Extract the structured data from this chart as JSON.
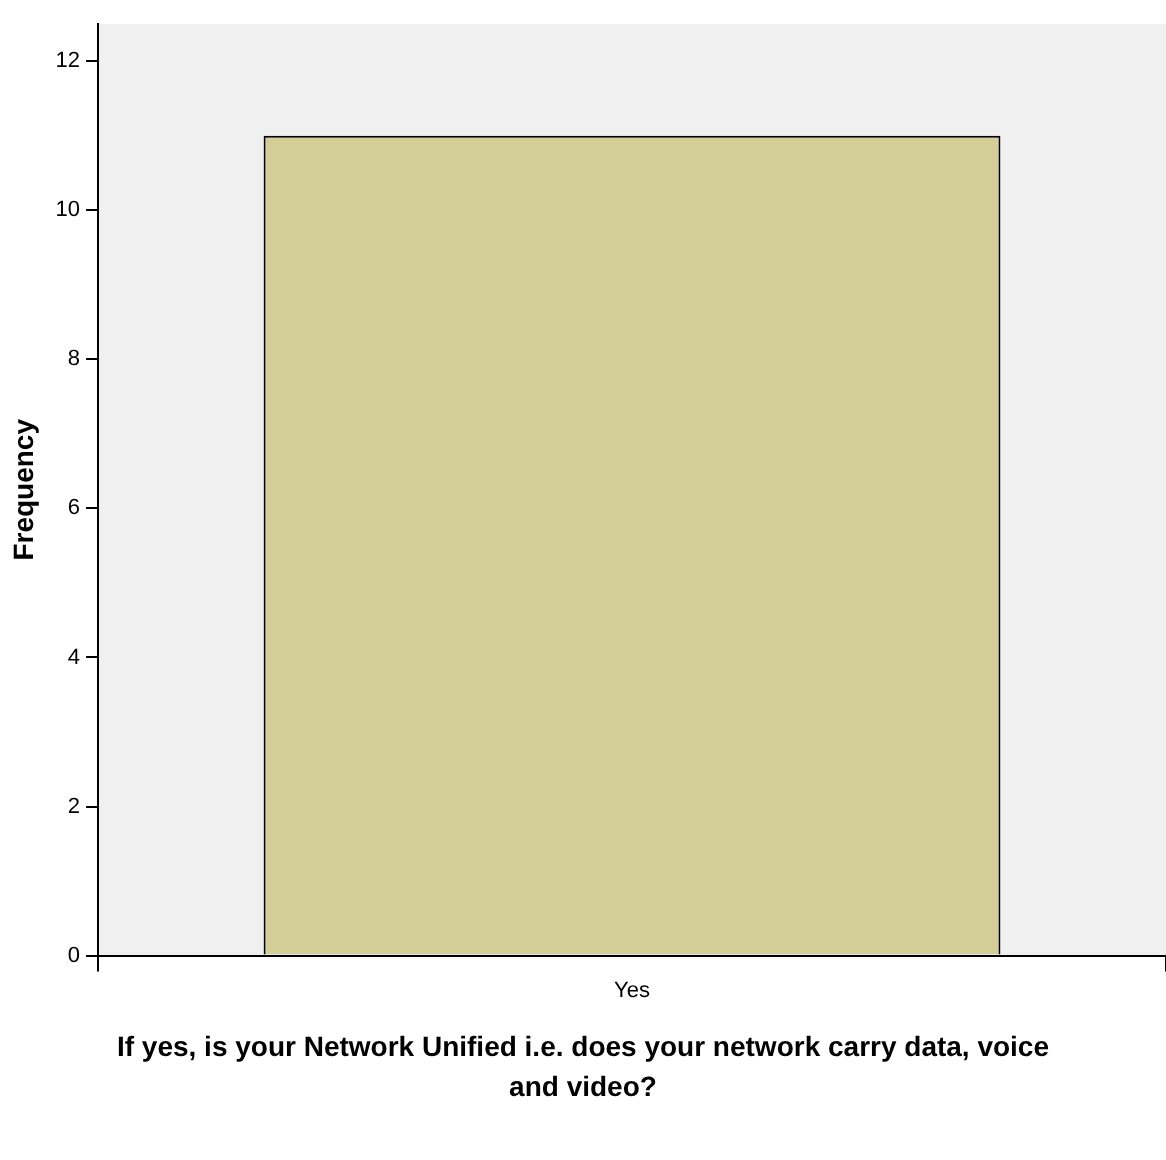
{
  "chart_data": {
    "type": "bar",
    "xlabel": "If yes, is your Network Unified i.e. does your network carry data, voice and video?",
    "ylabel": "Frequency",
    "categories": [
      "Yes"
    ],
    "values": [
      11
    ],
    "color": "#d3ce98",
    "ylim": [
      0,
      12.5
    ],
    "yticks": [
      0,
      2,
      4,
      6,
      8,
      10,
      12
    ],
    "grid": false
  }
}
